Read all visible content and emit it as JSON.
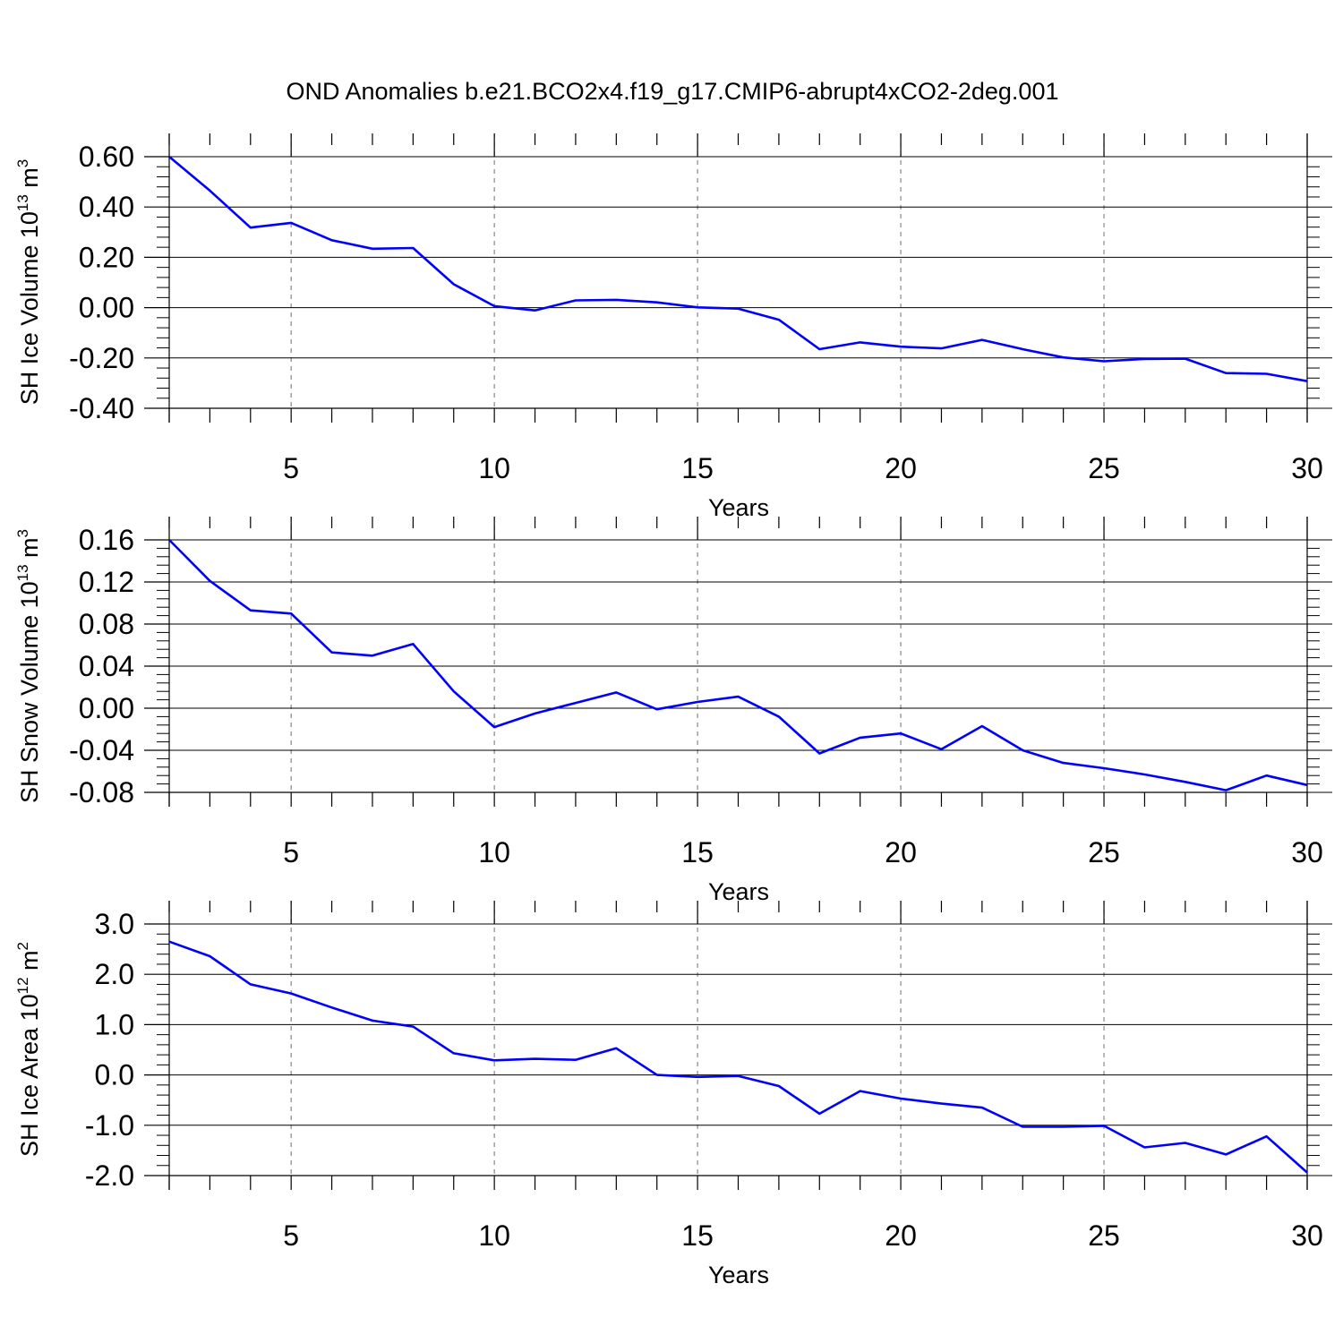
{
  "title": "OND Anomalies b.e21.BCO2x4.f19_g17.CMIP6-abrupt4xCO2-2deg.001",
  "colors": {
    "line": "#0000ff",
    "axis": "#000000",
    "grid": "#888888"
  },
  "chart_data": [
    {
      "type": "line",
      "ylabel": {
        "main": "SH Ice Volume 10",
        "exp": "13",
        "unit": " m",
        "unit_exp": "3"
      },
      "xlabel": "Years",
      "xlim": [
        2,
        30
      ],
      "ylim": [
        -0.4,
        0.6
      ],
      "x_ticks": [
        "5",
        "10",
        "15",
        "20",
        "25",
        "30"
      ],
      "y_ticks": [
        "0.60",
        "0.40",
        "0.20",
        "0.00",
        "-0.20",
        "-0.40"
      ],
      "grid": "vertical dashed at x major ticks",
      "series": [
        {
          "x": [
            2,
            3,
            4,
            5,
            6,
            7,
            8,
            9,
            10,
            11,
            12,
            13,
            14,
            15,
            16,
            17,
            18,
            19,
            20,
            21,
            22,
            23,
            24,
            25,
            26,
            27,
            28,
            29,
            30
          ],
          "values": [
            0.6,
            0.465,
            0.318,
            0.337,
            0.268,
            0.234,
            0.237,
            0.093,
            0.006,
            -0.011,
            0.029,
            0.031,
            0.021,
            0.001,
            -0.004,
            -0.048,
            -0.165,
            -0.138,
            -0.155,
            -0.162,
            -0.128,
            -0.165,
            -0.198,
            -0.213,
            -0.204,
            -0.203,
            -0.26,
            -0.263,
            -0.292
          ]
        }
      ]
    },
    {
      "type": "line",
      "ylabel": {
        "main": "SH Snow Volume 10",
        "exp": "13",
        "unit": " m",
        "unit_exp": "3"
      },
      "xlabel": "Years",
      "xlim": [
        2,
        30
      ],
      "ylim": [
        -0.08,
        0.16
      ],
      "x_ticks": [
        "5",
        "10",
        "15",
        "20",
        "25",
        "30"
      ],
      "y_ticks": [
        "0.16",
        "0.12",
        "0.08",
        "0.04",
        "0.00",
        "-0.04",
        "-0.08"
      ],
      "grid": "vertical dashed at x major ticks",
      "series": [
        {
          "x": [
            2,
            3,
            4,
            5,
            6,
            7,
            8,
            9,
            10,
            11,
            12,
            13,
            14,
            15,
            16,
            17,
            18,
            19,
            20,
            21,
            22,
            23,
            24,
            25,
            26,
            27,
            28,
            29,
            30
          ],
          "values": [
            0.16,
            0.121,
            0.093,
            0.09,
            0.053,
            0.05,
            0.061,
            0.016,
            -0.018,
            -0.005,
            0.005,
            0.015,
            -0.001,
            0.006,
            0.011,
            -0.008,
            -0.043,
            -0.028,
            -0.024,
            -0.039,
            -0.017,
            -0.04,
            -0.052,
            -0.057,
            -0.063,
            -0.07,
            -0.078,
            -0.064,
            -0.073
          ]
        }
      ]
    },
    {
      "type": "line",
      "ylabel": {
        "main": "SH Ice Area 10",
        "exp": "12",
        "unit": " m",
        "unit_exp": "2"
      },
      "xlabel": "Years",
      "xlim": [
        2,
        30
      ],
      "ylim": [
        -2.0,
        3.0
      ],
      "x_ticks": [
        "5",
        "10",
        "15",
        "20",
        "25",
        "30"
      ],
      "y_ticks": [
        "3.0",
        "2.0",
        "1.0",
        "0.0",
        "-1.0",
        "-2.0"
      ],
      "grid": "vertical dashed at x major ticks",
      "series": [
        {
          "x": [
            2,
            3,
            4,
            5,
            6,
            7,
            8,
            9,
            10,
            11,
            12,
            13,
            14,
            15,
            16,
            17,
            18,
            19,
            20,
            21,
            22,
            23,
            24,
            25,
            26,
            27,
            28,
            29,
            30
          ],
          "values": [
            2.65,
            2.36,
            1.8,
            1.62,
            1.34,
            1.08,
            0.96,
            0.43,
            0.29,
            0.32,
            0.3,
            0.53,
            0.0,
            -0.04,
            -0.02,
            -0.22,
            -0.77,
            -0.32,
            -0.47,
            -0.57,
            -0.65,
            -1.03,
            -1.03,
            -1.01,
            -1.44,
            -1.35,
            -1.58,
            -1.22,
            -1.94
          ]
        }
      ]
    }
  ]
}
